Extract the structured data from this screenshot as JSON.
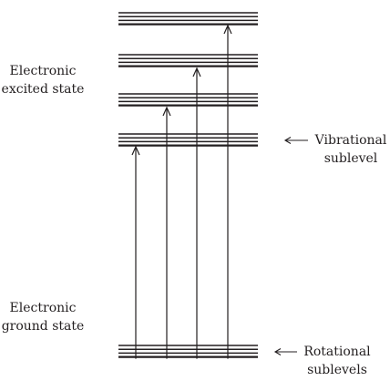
{
  "labels": {
    "excited_state": [
      "Electronic",
      "excited state"
    ],
    "ground_state": [
      "Electronic",
      "ground state"
    ],
    "vibrational": [
      "Vibrational",
      "sublevel"
    ],
    "rotational": [
      "Rotational",
      "sublevels"
    ]
  },
  "structure": {
    "excited_state_vibrational_levels": 4,
    "rotational_lines_per_level": 4,
    "transitions": 4
  },
  "colors": {
    "ink": "#231f20",
    "background": "#ffffff"
  }
}
